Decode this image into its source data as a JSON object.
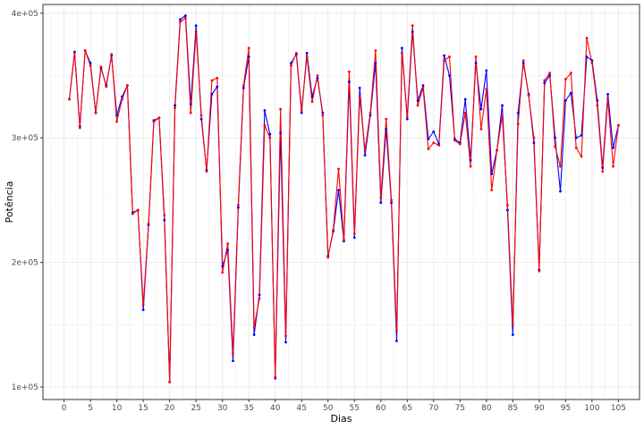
{
  "chart_data": {
    "type": "line",
    "title": "",
    "xlabel": "Dias",
    "ylabel": "Potência",
    "xlim": [
      -4,
      109
    ],
    "ylim": [
      90000,
      407000
    ],
    "x_ticks": [
      0,
      5,
      10,
      15,
      20,
      25,
      30,
      35,
      40,
      45,
      50,
      55,
      60,
      65,
      70,
      75,
      80,
      85,
      90,
      95,
      100,
      105
    ],
    "y_ticks": [
      100000,
      200000,
      300000,
      400000
    ],
    "y_tick_labels": [
      "1e+05",
      "2e+05",
      "3e+05",
      "4e+05"
    ],
    "grid": true,
    "colors": {
      "observed": "#0000ff",
      "fitted": "#ff0000",
      "grid": "#ebebeb",
      "panel_border": "#333333"
    },
    "series": [
      {
        "key": "observed",
        "color": "#0000ff",
        "x": [
          1,
          2,
          3,
          4,
          5,
          6,
          7,
          8,
          9,
          10,
          11,
          12,
          13,
          14,
          15,
          16,
          17,
          18,
          19,
          20,
          21,
          22,
          23,
          24,
          25,
          26,
          27,
          28,
          29,
          30,
          31,
          32,
          33,
          34,
          35,
          36,
          37,
          38,
          39,
          40,
          41,
          42,
          43,
          44,
          45,
          46,
          47,
          48,
          49,
          50,
          51,
          52,
          53,
          54,
          55,
          56,
          57,
          58,
          59,
          60,
          61,
          62,
          63,
          64,
          65,
          66,
          67,
          68,
          69,
          70,
          71,
          72,
          73,
          74,
          75,
          76,
          77,
          78,
          79,
          80,
          81,
          82,
          83,
          84,
          85,
          86,
          87,
          88,
          89,
          90,
          91,
          92,
          93,
          94,
          95,
          96,
          97,
          98,
          99,
          100,
          101,
          102,
          103,
          104,
          105
        ],
        "values": [
          331000,
          369000,
          309000,
          370000,
          360000,
          320000,
          356000,
          342000,
          366000,
          318000,
          333000,
          342000,
          240000,
          242000,
          162000,
          230000,
          314000,
          316000,
          234000,
          104000,
          326000,
          395000,
          398000,
          327000,
          390000,
          315000,
          274000,
          335000,
          341000,
          197000,
          210000,
          121000,
          244000,
          340000,
          365000,
          142000,
          174000,
          322000,
          303000,
          107000,
          304000,
          136000,
          360000,
          367000,
          320000,
          368000,
          333000,
          348000,
          320000,
          205000,
          225000,
          258000,
          217000,
          345000,
          220000,
          340000,
          286000,
          318000,
          360000,
          248000,
          307000,
          248000,
          137000,
          372000,
          315000,
          385000,
          330000,
          342000,
          299000,
          305000,
          295000,
          366000,
          350000,
          299000,
          296000,
          331000,
          282000,
          360000,
          323000,
          354000,
          271000,
          290000,
          326000,
          242000,
          142000,
          320000,
          360000,
          335000,
          296000,
          194000,
          344000,
          350000,
          300000,
          257000,
          330000,
          336000,
          300000,
          302000,
          365000,
          362000,
          330000,
          276000,
          335000,
          292000,
          310000
        ]
      },
      {
        "key": "fitted",
        "color": "#ff0000",
        "x": [
          1,
          2,
          3,
          4,
          5,
          6,
          7,
          8,
          9,
          10,
          11,
          12,
          13,
          14,
          15,
          16,
          17,
          18,
          19,
          20,
          21,
          22,
          23,
          24,
          25,
          26,
          27,
          28,
          29,
          30,
          31,
          32,
          33,
          34,
          35,
          36,
          37,
          38,
          39,
          40,
          41,
          42,
          43,
          44,
          45,
          46,
          47,
          48,
          49,
          50,
          51,
          52,
          53,
          54,
          55,
          56,
          57,
          58,
          59,
          60,
          61,
          62,
          63,
          64,
          65,
          66,
          67,
          68,
          69,
          70,
          71,
          72,
          73,
          74,
          75,
          76,
          77,
          78,
          79,
          80,
          81,
          82,
          83,
          84,
          85,
          86,
          87,
          88,
          89,
          90,
          91,
          92,
          93,
          94,
          95,
          96,
          97,
          98,
          99,
          100,
          101,
          102,
          103,
          104,
          105
        ],
        "values": [
          331000,
          368000,
          308000,
          370000,
          358000,
          320000,
          357000,
          341000,
          367000,
          313000,
          331000,
          342000,
          239000,
          242000,
          166000,
          231000,
          313000,
          316000,
          238000,
          104000,
          324000,
          393000,
          396000,
          320000,
          385000,
          318000,
          273000,
          346000,
          348000,
          192000,
          215000,
          127000,
          246000,
          342000,
          372000,
          148000,
          171000,
          310000,
          300000,
          108000,
          323000,
          141000,
          358000,
          368000,
          322000,
          365000,
          329000,
          350000,
          318000,
          204000,
          226000,
          275000,
          218000,
          353000,
          223000,
          333000,
          290000,
          320000,
          370000,
          252000,
          315000,
          250000,
          145000,
          368000,
          317000,
          390000,
          326000,
          340000,
          291000,
          296000,
          294000,
          362000,
          365000,
          298000,
          295000,
          320000,
          277000,
          365000,
          307000,
          339000,
          258000,
          290000,
          318000,
          246000,
          150000,
          311000,
          362000,
          334000,
          300000,
          193000,
          346000,
          352000,
          293000,
          277000,
          347000,
          352000,
          292000,
          285000,
          380000,
          360000,
          326000,
          273000,
          331000,
          277000,
          310000
        ]
      }
    ]
  }
}
